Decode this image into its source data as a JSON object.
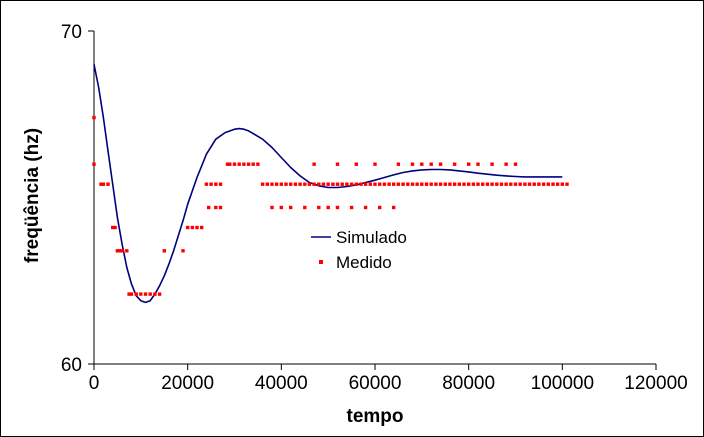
{
  "chart_data": {
    "type": "line",
    "title": "",
    "xlabel": "tempo",
    "ylabel": "freqüência (hz)",
    "xlim": [
      0,
      120000
    ],
    "ylim": [
      60,
      70
    ],
    "x_ticks": [
      "0",
      "20000",
      "40000",
      "60000",
      "80000",
      "100000",
      "120000"
    ],
    "y_ticks": [
      "60",
      "70"
    ],
    "grid": false,
    "legend_position": "center",
    "series": [
      {
        "name": "Simulado",
        "kind": "line",
        "color": "#000080",
        "x": [
          0,
          1000,
          2000,
          3000,
          4000,
          5000,
          6000,
          7000,
          8000,
          9000,
          10000,
          11000,
          12000,
          13000,
          14000,
          15000,
          16000,
          17000,
          18000,
          19000,
          20000,
          22000,
          24000,
          26000,
          28000,
          30000,
          31000,
          32000,
          33000,
          34000,
          36000,
          38000,
          40000,
          42000,
          44000,
          46000,
          48000,
          50000,
          52000,
          54000,
          56000,
          58000,
          60000,
          62000,
          64000,
          66000,
          68000,
          70000,
          72000,
          74000,
          76000,
          78000,
          80000,
          82000,
          84000,
          86000,
          88000,
          90000,
          92000,
          94000,
          96000,
          98000,
          100000
        ],
        "y": [
          69.0,
          68.3,
          67.4,
          66.4,
          65.4,
          64.4,
          63.6,
          62.9,
          62.4,
          62.05,
          61.9,
          61.85,
          61.9,
          62.1,
          62.35,
          62.65,
          63.0,
          63.4,
          63.85,
          64.3,
          64.8,
          65.6,
          66.3,
          66.75,
          66.95,
          67.05,
          67.07,
          67.05,
          67.0,
          66.92,
          66.75,
          66.5,
          66.2,
          65.9,
          65.65,
          65.45,
          65.35,
          65.3,
          65.3,
          65.33,
          65.38,
          65.45,
          65.52,
          65.6,
          65.68,
          65.75,
          65.8,
          65.83,
          65.84,
          65.84,
          65.83,
          65.8,
          65.77,
          65.73,
          65.7,
          65.67,
          65.65,
          65.63,
          65.62,
          65.62,
          65.62,
          65.62,
          65.62
        ]
      },
      {
        "name": "Medido",
        "kind": "scatter",
        "color": "#ff0000",
        "x": [
          0,
          0,
          1500,
          2000,
          3000,
          4000,
          4500,
          5000,
          5500,
          6000,
          7000,
          7500,
          8000,
          9000,
          10000,
          11000,
          12000,
          13000,
          14000,
          15000,
          19000,
          20000,
          21000,
          22000,
          23000,
          24000,
          25000,
          26000,
          27000,
          24500,
          26000,
          27000,
          28500,
          29000,
          30000,
          31000,
          32000,
          33000,
          34000,
          35000,
          36000,
          37000,
          38000,
          39000,
          40000,
          41000,
          42000,
          43000,
          44000,
          45000,
          46000,
          47000,
          48000,
          49000,
          50000,
          51000,
          52000,
          53000,
          54000,
          55000,
          56000,
          57000,
          58000,
          59000,
          60000,
          61000,
          62000,
          63000,
          64000,
          65000,
          66000,
          67000,
          68000,
          69000,
          70000,
          71000,
          72000,
          73000,
          74000,
          75000,
          76000,
          77000,
          78000,
          79000,
          80000,
          81000,
          82000,
          83000,
          84000,
          85000,
          86000,
          87000,
          88000,
          89000,
          90000,
          91000,
          92000,
          93000,
          94000,
          95000,
          96000,
          97000,
          98000,
          99000,
          100000,
          101000,
          38000,
          40000,
          42000,
          45000,
          48000,
          50000,
          52000,
          55000,
          58000,
          61000,
          64000,
          47000,
          52000,
          56000,
          60000,
          65000,
          68000,
          70000,
          72000,
          74000,
          77000,
          80000,
          82000,
          85000,
          88000,
          90000
        ],
        "y": [
          67.4,
          66.0,
          65.4,
          65.4,
          65.4,
          64.1,
          64.1,
          63.4,
          63.4,
          63.4,
          63.4,
          62.1,
          62.1,
          62.1,
          62.1,
          62.1,
          62.1,
          62.1,
          62.1,
          63.4,
          63.4,
          64.1,
          64.1,
          64.1,
          64.1,
          65.4,
          65.4,
          65.4,
          65.4,
          64.7,
          64.7,
          64.7,
          66.0,
          66.0,
          66.0,
          66.0,
          66.0,
          66.0,
          66.0,
          66.0,
          65.4,
          65.4,
          65.4,
          65.4,
          65.4,
          65.4,
          65.4,
          65.4,
          65.4,
          65.4,
          65.4,
          65.4,
          65.4,
          65.4,
          65.4,
          65.4,
          65.4,
          65.4,
          65.4,
          65.4,
          65.4,
          65.4,
          65.4,
          65.4,
          65.4,
          65.4,
          65.4,
          65.4,
          65.4,
          65.4,
          65.4,
          65.4,
          65.4,
          65.4,
          65.4,
          65.4,
          65.4,
          65.4,
          65.4,
          65.4,
          65.4,
          65.4,
          65.4,
          65.4,
          65.4,
          65.4,
          65.4,
          65.4,
          65.4,
          65.4,
          65.4,
          65.4,
          65.4,
          65.4,
          65.4,
          65.4,
          65.4,
          65.4,
          65.4,
          65.4,
          65.4,
          65.4,
          65.4,
          65.4,
          65.4,
          65.4,
          64.7,
          64.7,
          64.7,
          64.7,
          64.7,
          64.7,
          64.7,
          64.7,
          64.7,
          64.7,
          64.7,
          66.0,
          66.0,
          66.0,
          66.0,
          66.0,
          66.0,
          66.0,
          66.0,
          66.0,
          66.0,
          66.0,
          66.0,
          66.0,
          66.0,
          66.0
        ]
      }
    ]
  }
}
